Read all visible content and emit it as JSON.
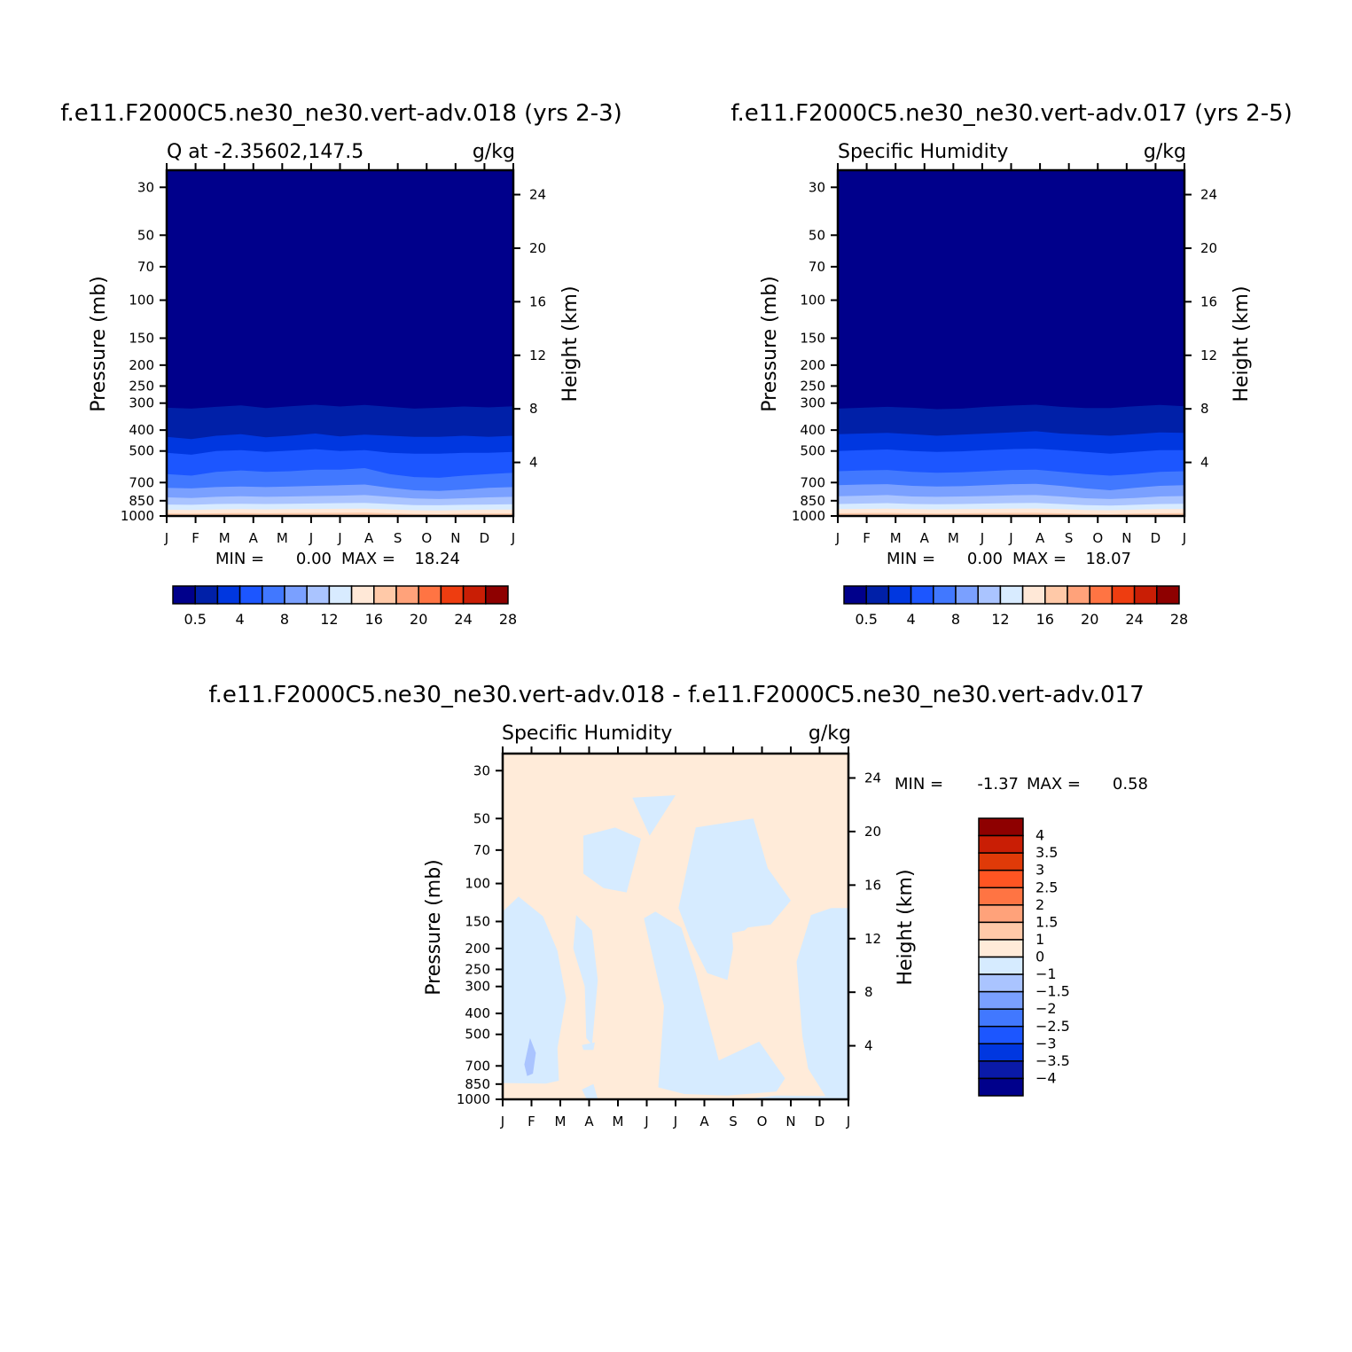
{
  "chart_data": [
    {
      "type": "heatmap",
      "title": "f.e11.F2000C5.ne30_ne30.vert-adv.018 (yrs 2-3)",
      "left_label": "Q at -2.35602,147.5",
      "units": "g/kg",
      "ylabel": "Pressure (mb)",
      "y2label": "Height (km)",
      "x_ticks": [
        "J",
        "F",
        "M",
        "A",
        "M",
        "J",
        "J",
        "A",
        "S",
        "O",
        "N",
        "D",
        "J"
      ],
      "y_ticks": [
        30,
        50,
        70,
        100,
        150,
        200,
        250,
        300,
        400,
        500,
        700,
        850,
        1000
      ],
      "y2_ticks": [
        4,
        8,
        12,
        16,
        20,
        24
      ],
      "ylim": [
        1000,
        25
      ],
      "y_scale": "log",
      "stats": {
        "min_label": "MIN =",
        "min_value": "0.00",
        "max_label": "MAX =",
        "max_value": "18.24"
      },
      "levels": [
        0.5,
        2,
        4,
        6,
        8,
        10,
        12,
        14,
        16,
        18,
        20,
        22,
        24,
        26,
        28
      ],
      "colorbar_labels": [
        "0.5",
        "4",
        "8",
        "12",
        "16",
        "20",
        "24",
        "28"
      ],
      "bands_top_pressure_mb": [
        {
          "value_range": "0.5-2",
          "pressure": [
            315,
            318,
            312,
            307,
            316,
            310,
            305,
            311,
            306,
            312,
            318,
            315,
            311,
            314,
            310
          ]
        },
        {
          "value_range": "2-4",
          "pressure": [
            430,
            440,
            425,
            418,
            432,
            425,
            415,
            428,
            420,
            425,
            430,
            430,
            425,
            430,
            425
          ]
        },
        {
          "value_range": "4-6",
          "pressure": [
            510,
            520,
            500,
            495,
            505,
            498,
            490,
            500,
            495,
            510,
            515,
            515,
            510,
            510,
            505
          ]
        },
        {
          "value_range": "6-8",
          "pressure": [
            640,
            650,
            625,
            615,
            625,
            620,
            610,
            610,
            600,
            640,
            660,
            665,
            650,
            640,
            630
          ]
        },
        {
          "value_range": "8-10",
          "pressure": [
            740,
            745,
            735,
            730,
            735,
            730,
            725,
            720,
            715,
            740,
            760,
            765,
            755,
            740,
            735
          ]
        },
        {
          "value_range": "10-12",
          "pressure": [
            820,
            825,
            815,
            810,
            815,
            812,
            808,
            805,
            800,
            815,
            830,
            835,
            828,
            820,
            815
          ]
        },
        {
          "value_range": "12-14",
          "pressure": [
            885,
            888,
            880,
            878,
            880,
            878,
            875,
            872,
            870,
            880,
            890,
            892,
            888,
            885,
            882
          ]
        },
        {
          "value_range": "14-16",
          "pressure": [
            935,
            938,
            932,
            930,
            932,
            930,
            928,
            926,
            925,
            932,
            940,
            942,
            938,
            935,
            933
          ]
        },
        {
          "value_range": "16-18",
          "pressure": [
            975,
            976,
            972,
            970,
            972,
            970,
            968,
            967,
            966,
            972,
            978,
            980,
            976,
            975,
            973
          ]
        }
      ]
    },
    {
      "type": "heatmap",
      "title": "f.e11.F2000C5.ne30_ne30.vert-adv.017 (yrs 2-5)",
      "left_label": "Specific Humidity",
      "units": "g/kg",
      "ylabel": "Pressure (mb)",
      "y2label": "Height (km)",
      "x_ticks": [
        "J",
        "F",
        "M",
        "A",
        "M",
        "J",
        "J",
        "A",
        "S",
        "O",
        "N",
        "D",
        "J"
      ],
      "y_ticks": [
        30,
        50,
        70,
        100,
        150,
        200,
        250,
        300,
        400,
        500,
        700,
        850,
        1000
      ],
      "y2_ticks": [
        4,
        8,
        12,
        16,
        20,
        24
      ],
      "ylim": [
        1000,
        25
      ],
      "y_scale": "log",
      "stats": {
        "min_label": "MIN =",
        "min_value": "0.00",
        "max_label": "MAX =",
        "max_value": "18.07"
      },
      "levels": [
        0.5,
        2,
        4,
        6,
        8,
        10,
        12,
        14,
        16,
        18,
        20,
        22,
        24,
        26,
        28
      ],
      "colorbar_labels": [
        "0.5",
        "4",
        "8",
        "12",
        "16",
        "20",
        "24",
        "28"
      ],
      "bands_top_pressure_mb": [
        {
          "value_range": "0.5-2",
          "pressure": [
            318,
            315,
            312,
            315,
            320,
            318,
            312,
            308,
            305,
            312,
            316,
            316,
            310,
            306,
            310
          ]
        },
        {
          "value_range": "2-4",
          "pressure": [
            418,
            415,
            412,
            418,
            425,
            420,
            415,
            410,
            405,
            415,
            420,
            425,
            418,
            410,
            412
          ]
        },
        {
          "value_range": "4-6",
          "pressure": [
            500,
            495,
            492,
            500,
            505,
            502,
            495,
            490,
            488,
            495,
            505,
            515,
            505,
            495,
            495
          ]
        },
        {
          "value_range": "6-8",
          "pressure": [
            620,
            615,
            612,
            625,
            630,
            628,
            620,
            612,
            610,
            625,
            640,
            650,
            640,
            625,
            620
          ]
        },
        {
          "value_range": "8-10",
          "pressure": [
            720,
            715,
            712,
            725,
            730,
            728,
            720,
            712,
            710,
            725,
            745,
            760,
            740,
            725,
            720
          ]
        },
        {
          "value_range": "10-12",
          "pressure": [
            810,
            805,
            800,
            812,
            815,
            812,
            808,
            802,
            800,
            812,
            828,
            835,
            825,
            812,
            808
          ]
        },
        {
          "value_range": "12-14",
          "pressure": [
            880,
            876,
            872,
            880,
            882,
            880,
            876,
            872,
            870,
            880,
            890,
            895,
            888,
            880,
            878
          ]
        },
        {
          "value_range": "14-16",
          "pressure": [
            930,
            928,
            925,
            930,
            932,
            930,
            928,
            925,
            924,
            930,
            938,
            940,
            935,
            930,
            928
          ]
        },
        {
          "value_range": "16-18",
          "pressure": [
            972,
            970,
            968,
            972,
            974,
            972,
            970,
            968,
            967,
            972,
            978,
            980,
            975,
            972,
            970
          ]
        }
      ]
    },
    {
      "type": "heatmap",
      "title": "f.e11.F2000C5.ne30_ne30.vert-adv.018 - f.e11.F2000C5.ne30_ne30.vert-adv.017",
      "left_label": "Specific Humidity",
      "units": "g/kg",
      "ylabel": "Pressure (mb)",
      "y2label": "Height (km)",
      "x_ticks": [
        "J",
        "F",
        "M",
        "A",
        "M",
        "J",
        "J",
        "A",
        "S",
        "O",
        "N",
        "D",
        "J"
      ],
      "y_ticks": [
        30,
        50,
        70,
        100,
        150,
        200,
        250,
        300,
        400,
        500,
        700,
        850,
        1000
      ],
      "y2_ticks": [
        4,
        8,
        12,
        16,
        20,
        24
      ],
      "ylim": [
        1000,
        25
      ],
      "y_scale": "log",
      "stats": {
        "min_label": "MIN =",
        "min_value": "-1.37",
        "max_label": "MAX =",
        "max_value": "0.58"
      },
      "levels": [
        -4,
        -3.5,
        -3,
        -2.5,
        -2,
        -1.5,
        -1,
        0,
        1,
        1.5,
        2,
        2.5,
        3,
        3.5,
        4
      ],
      "colorbar_labels": [
        "4",
        "3.5",
        "3",
        "2.5",
        "2",
        "1.5",
        "1",
        "0",
        "-1",
        "-1.5",
        "-2",
        "-2.5",
        "-3",
        "-3.5",
        "-4"
      ],
      "background_range": "0-1",
      "regions": [
        {
          "value_range": "-1-0",
          "points": [
            [
              0,
              135
            ],
            [
              0.55,
              115
            ],
            [
              1.4,
              142
            ],
            [
              1.9,
              205
            ],
            [
              2.2,
              340
            ],
            [
              1.9,
              580
            ],
            [
              1.95,
              820
            ],
            [
              1.5,
              845
            ],
            [
              0,
              840
            ]
          ]
        },
        {
          "value_range": "-1-0",
          "points": [
            [
              2.55,
              140
            ],
            [
              3.1,
              165
            ],
            [
              3.3,
              280
            ],
            [
              3.1,
              560
            ],
            [
              2.9,
              520
            ],
            [
              2.85,
              300
            ],
            [
              2.45,
              200
            ]
          ]
        },
        {
          "value_range": "-1-0",
          "points": [
            [
              2.75,
              560
            ],
            [
              3.2,
              545
            ],
            [
              3.15,
              590
            ],
            [
              2.8,
              590
            ]
          ]
        },
        {
          "value_range": "-1-0",
          "points": [
            [
              2.75,
              900
            ],
            [
              3.15,
              850
            ],
            [
              3.3,
              1000
            ],
            [
              2.9,
              990
            ]
          ]
        },
        {
          "value_range": "-1-0",
          "points": [
            [
              2.8,
              60
            ],
            [
              3.9,
              55
            ],
            [
              4.8,
              62
            ],
            [
              4.3,
              110
            ],
            [
              3.5,
              105
            ],
            [
              2.8,
              90
            ]
          ]
        },
        {
          "value_range": "-1-0",
          "points": [
            [
              4.5,
              40
            ],
            [
              6.0,
              39
            ],
            [
              5.1,
              60
            ]
          ]
        },
        {
          "value_range": "-1-0",
          "points": [
            [
              4.9,
              145
            ],
            [
              5.3,
              135
            ],
            [
              6.2,
              160
            ],
            [
              6.7,
              260
            ],
            [
              7.5,
              660
            ],
            [
              8.9,
              540
            ],
            [
              9.8,
              800
            ],
            [
              9.5,
              920
            ],
            [
              7.8,
              960
            ],
            [
              6.3,
              945
            ],
            [
              5.4,
              880
            ],
            [
              5.6,
              370
            ]
          ]
        },
        {
          "value_range": "-1-0",
          "points": [
            [
              6.7,
              55
            ],
            [
              8.7,
              50
            ],
            [
              9.2,
              85
            ],
            [
              10.0,
              120
            ],
            [
              9.3,
              155
            ],
            [
              8.5,
              160
            ],
            [
              8.4,
              165
            ],
            [
              7.9,
              170
            ],
            [
              7.6,
              120
            ],
            [
              7.9,
              135
            ],
            [
              8.0,
              200
            ],
            [
              7.8,
              280
            ],
            [
              7.1,
              260
            ],
            [
              6.5,
              180
            ],
            [
              6.1,
              130
            ]
          ]
        },
        {
          "value_range": "-1-0",
          "points": [
            [
              10.7,
              140
            ],
            [
              11.4,
              130
            ],
            [
              12,
              130
            ],
            [
              12,
              1000
            ],
            [
              8.3,
              1000
            ],
            [
              9.5,
              960
            ],
            [
              11.2,
              965
            ],
            [
              10.6,
              720
            ],
            [
              10.4,
              510
            ],
            [
              10.2,
              230
            ]
          ]
        },
        {
          "value_range": "-1-0",
          "points": [
            [
              11.8,
              420
            ],
            [
              12,
              400
            ],
            [
              12,
              460
            ],
            [
              11.85,
              455
            ]
          ]
        },
        {
          "value_range": "-1.5--1",
          "points": [
            [
              0.75,
              690
            ],
            [
              0.95,
              520
            ],
            [
              1.15,
              610
            ],
            [
              1.05,
              760
            ],
            [
              0.85,
              780
            ]
          ]
        }
      ]
    }
  ]
}
